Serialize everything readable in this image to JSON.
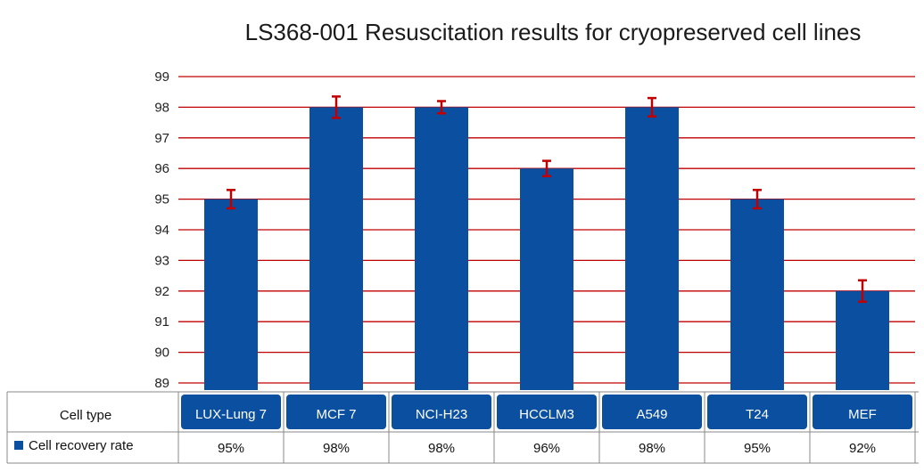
{
  "chart_data": {
    "type": "bar",
    "title": "LS368-001 Resuscitation results for cryopreserved cell lines",
    "categories": [
      "LUX-Lung 7",
      "MCF 7",
      "NCI-H23",
      "HCCLM3",
      "A549",
      "T24",
      "MEF"
    ],
    "series": [
      {
        "name": "Cell recovery rate",
        "values": [
          95,
          98,
          98,
          96,
          98,
          95,
          92
        ],
        "error": [
          0.3,
          0.35,
          0.2,
          0.25,
          0.3,
          0.3,
          0.35
        ],
        "labels": [
          "95%",
          "98%",
          "98%",
          "96%",
          "98%",
          "95%",
          "92%"
        ]
      }
    ],
    "ylim": [
      89,
      99
    ],
    "yticks": [
      89,
      90,
      91,
      92,
      93,
      94,
      95,
      96,
      97,
      98,
      99
    ],
    "grid": true,
    "table": {
      "header_label": "Cell type",
      "row_label": "Cell recovery rate"
    },
    "colors": {
      "bar": "#0a4fa0",
      "grid": "#c00000",
      "error_bar": "#c00000",
      "header_bg": "#0a4fa0"
    }
  }
}
